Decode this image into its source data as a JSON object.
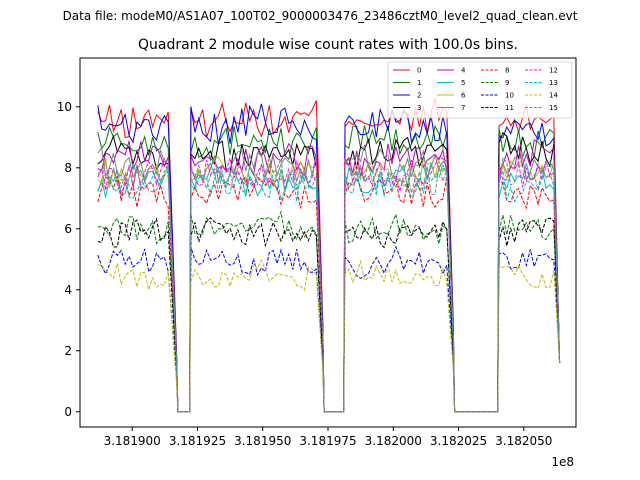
{
  "figure": {
    "suptitle": "Data file: modeM0/AS1A07_100T02_9000003476_23486cztM0_level2_quad_clean.evt"
  },
  "chart_data": {
    "type": "line",
    "title": "Quadrant 2 module wise count rates with 100.0s bins.",
    "xlabel": "",
    "ylabel": "",
    "x_offset_label": "1e8",
    "xlim": [
      3.18188,
      3.18207
    ],
    "ylim": [
      -0.5,
      11.6
    ],
    "x_ticks": [
      3.1819,
      3.181925,
      3.18195,
      3.181975,
      3.182,
      3.182025,
      3.18205
    ],
    "x_tick_labels": [
      "3.181900",
      "3.181925",
      "3.181950",
      "3.181975",
      "3.182000",
      "3.182025",
      "3.182050"
    ],
    "y_ticks": [
      0,
      2,
      4,
      6,
      8,
      10
    ],
    "y_tick_labels": [
      "0",
      "2",
      "4",
      "6",
      "8",
      "10"
    ],
    "grid": false,
    "legend_position": "top-right",
    "segments": [
      {
        "start": 3.1818868,
        "gap_edge_start": 3.181915,
        "drop_end": 3.181917
      },
      {
        "gap_end": 3.181922,
        "start": 3.1819225,
        "gap_edge_start": 3.181971,
        "drop_end": 3.181973
      },
      {
        "gap_end": 3.181981,
        "start": 3.1819815,
        "gap_edge_start": 3.182021,
        "drop_end": 3.182023
      },
      {
        "gap_end": 3.18204,
        "start": 3.1820405,
        "end": 3.1820637
      }
    ],
    "series": [
      {
        "name": "0",
        "color": "#ff0000",
        "style": "solid",
        "level": 9.6
      },
      {
        "name": "1",
        "color": "#008000",
        "style": "solid",
        "level": 8.9
      },
      {
        "name": "2",
        "color": "#0000ff",
        "style": "solid",
        "level": 9.4
      },
      {
        "name": "3",
        "color": "#000000",
        "style": "solid",
        "level": 8.5
      },
      {
        "name": "4",
        "color": "#bf00bf",
        "style": "solid",
        "level": 8.3
      },
      {
        "name": "5",
        "color": "#00bfbf",
        "style": "solid",
        "level": 7.6
      },
      {
        "name": "6",
        "color": "#bfbf00",
        "style": "solid",
        "level": 7.9
      },
      {
        "name": "7",
        "color": "#808080",
        "style": "solid",
        "level": 8.1
      },
      {
        "name": "8",
        "color": "#ff0000",
        "style": "dashed",
        "level": 7.2
      },
      {
        "name": "9",
        "color": "#008000",
        "style": "dashed",
        "level": 6.0
      },
      {
        "name": "10",
        "color": "#0000ff",
        "style": "dashed",
        "level": 4.9
      },
      {
        "name": "11",
        "color": "#000000",
        "style": "dashed",
        "level": 5.9
      },
      {
        "name": "12",
        "color": "#ff00ff",
        "style": "dashed",
        "level": 7.8
      },
      {
        "name": "13",
        "color": "#00bfbf",
        "style": "dashed",
        "level": 7.5
      },
      {
        "name": "14",
        "color": "#bfbf00",
        "style": "dashed",
        "level": 4.5
      },
      {
        "name": "15",
        "color": "#808080",
        "style": "dashed",
        "level": 7.7
      }
    ]
  }
}
